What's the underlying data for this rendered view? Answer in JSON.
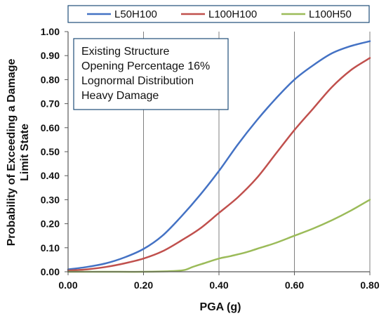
{
  "chart_data": {
    "type": "line",
    "xlabel": "PGA (g)",
    "ylabel_lines": [
      "Probability of Exceeding a Damage",
      "Limit State"
    ],
    "xlim": [
      0,
      0.8
    ],
    "ylim": [
      0,
      1.0
    ],
    "x_ticks": [
      "0.00",
      "0.20",
      "0.40",
      "0.60",
      "0.80"
    ],
    "y_ticks": [
      "0.00",
      "0.10",
      "0.20",
      "0.30",
      "0.40",
      "0.50",
      "0.60",
      "0.70",
      "0.80",
      "0.90",
      "1.00"
    ],
    "grid": "vertical",
    "legend_position": "top",
    "annotation_lines": [
      "Existing Structure",
      "Opening Percentage 16%",
      "Lognormal Distribution",
      "Heavy Damage"
    ],
    "series": [
      {
        "name": "L50H100",
        "color": "#4472C4",
        "points": [
          [
            0,
            0.01
          ],
          [
            0.05,
            0.02
          ],
          [
            0.1,
            0.035
          ],
          [
            0.15,
            0.06
          ],
          [
            0.2,
            0.095
          ],
          [
            0.25,
            0.15
          ],
          [
            0.3,
            0.23
          ],
          [
            0.35,
            0.32
          ],
          [
            0.4,
            0.42
          ],
          [
            0.45,
            0.53
          ],
          [
            0.5,
            0.63
          ],
          [
            0.55,
            0.72
          ],
          [
            0.6,
            0.8
          ],
          [
            0.65,
            0.86
          ],
          [
            0.7,
            0.91
          ],
          [
            0.75,
            0.94
          ],
          [
            0.8,
            0.96
          ]
        ]
      },
      {
        "name": "L100H100",
        "color": "#C0504D",
        "points": [
          [
            0,
            0.005
          ],
          [
            0.05,
            0.01
          ],
          [
            0.1,
            0.02
          ],
          [
            0.15,
            0.035
          ],
          [
            0.2,
            0.055
          ],
          [
            0.25,
            0.085
          ],
          [
            0.3,
            0.13
          ],
          [
            0.35,
            0.18
          ],
          [
            0.4,
            0.245
          ],
          [
            0.45,
            0.31
          ],
          [
            0.5,
            0.39
          ],
          [
            0.55,
            0.49
          ],
          [
            0.6,
            0.59
          ],
          [
            0.65,
            0.68
          ],
          [
            0.7,
            0.77
          ],
          [
            0.75,
            0.84
          ],
          [
            0.8,
            0.89
          ]
        ]
      },
      {
        "name": "L100H50",
        "color": "#9BBB59",
        "points": [
          [
            0,
            0
          ],
          [
            0.1,
            0
          ],
          [
            0.2,
            0
          ],
          [
            0.28,
            0.003
          ],
          [
            0.31,
            0.008
          ],
          [
            0.33,
            0.02
          ],
          [
            0.36,
            0.035
          ],
          [
            0.4,
            0.055
          ],
          [
            0.43,
            0.065
          ],
          [
            0.47,
            0.08
          ],
          [
            0.5,
            0.095
          ],
          [
            0.55,
            0.12
          ],
          [
            0.6,
            0.15
          ],
          [
            0.65,
            0.18
          ],
          [
            0.7,
            0.215
          ],
          [
            0.75,
            0.255
          ],
          [
            0.8,
            0.3
          ]
        ]
      }
    ]
  }
}
